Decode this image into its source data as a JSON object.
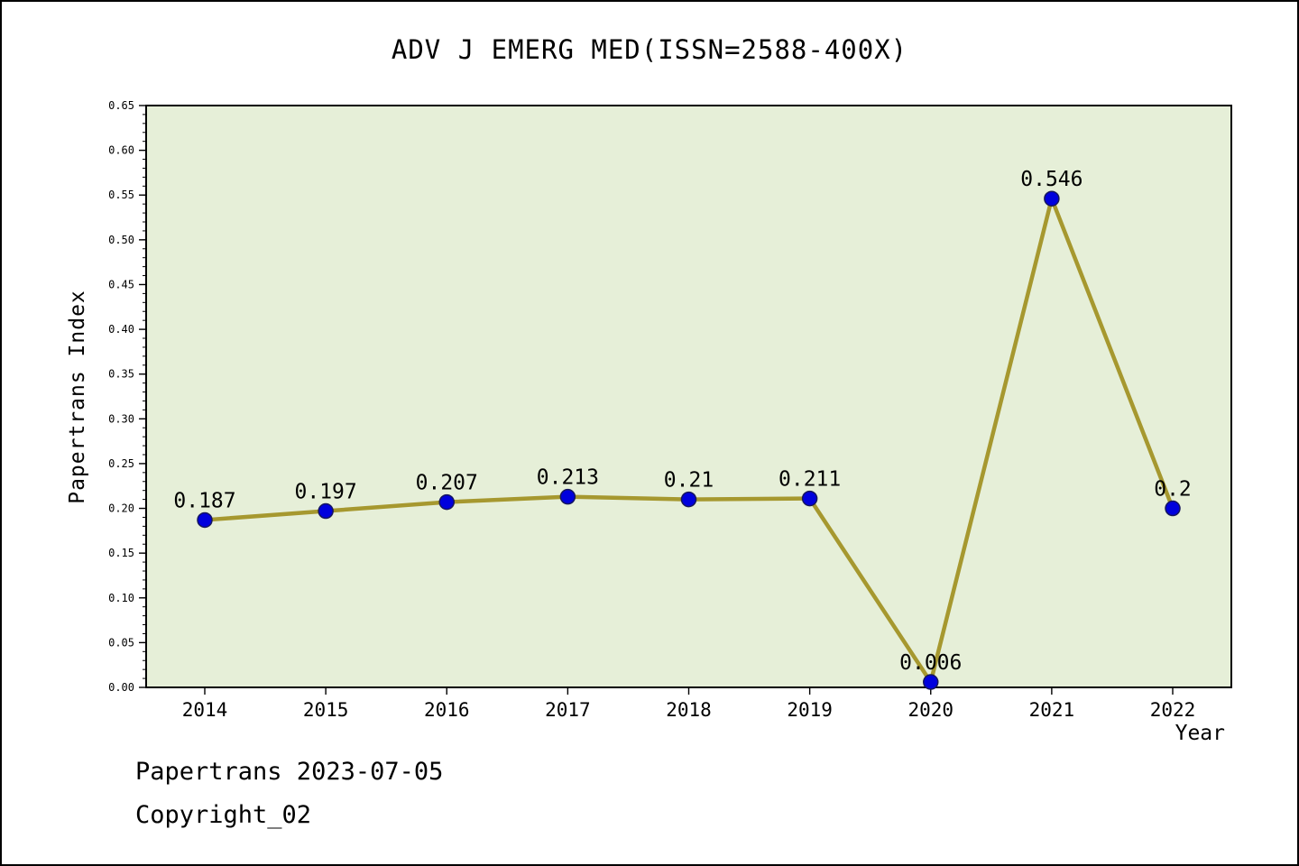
{
  "title": "ADV J EMERG MED(ISSN=2588-400X)",
  "footer": {
    "line1": "Papertrans 2023-07-05",
    "line2": "Copyright_02"
  },
  "chart_data": {
    "type": "line",
    "title": "ADV J EMERG MED(ISSN=2588-400X)",
    "xlabel": "Year",
    "ylabel": "Papertrans Index",
    "x": [
      2014,
      2015,
      2016,
      2017,
      2018,
      2019,
      2020,
      2021,
      2022
    ],
    "values": [
      0.187,
      0.197,
      0.207,
      0.213,
      0.21,
      0.211,
      0.006,
      0.546,
      0.2
    ],
    "point_labels": [
      "0.187",
      "0.197",
      "0.207",
      "0.213",
      "0.21",
      "0.211",
      "0.006",
      "0.546",
      "0.2"
    ],
    "ylim": [
      0,
      0.65
    ],
    "ytick_step": 0.05,
    "ytick_minor_step": 0.01,
    "grid": false,
    "legend": null,
    "colors": {
      "line": "#a6982f",
      "marker_fill": "#0000dd",
      "marker_edge": "#16165e",
      "plot_bg": "#e6efd8",
      "axis": "#000000",
      "text": "#000000"
    }
  }
}
